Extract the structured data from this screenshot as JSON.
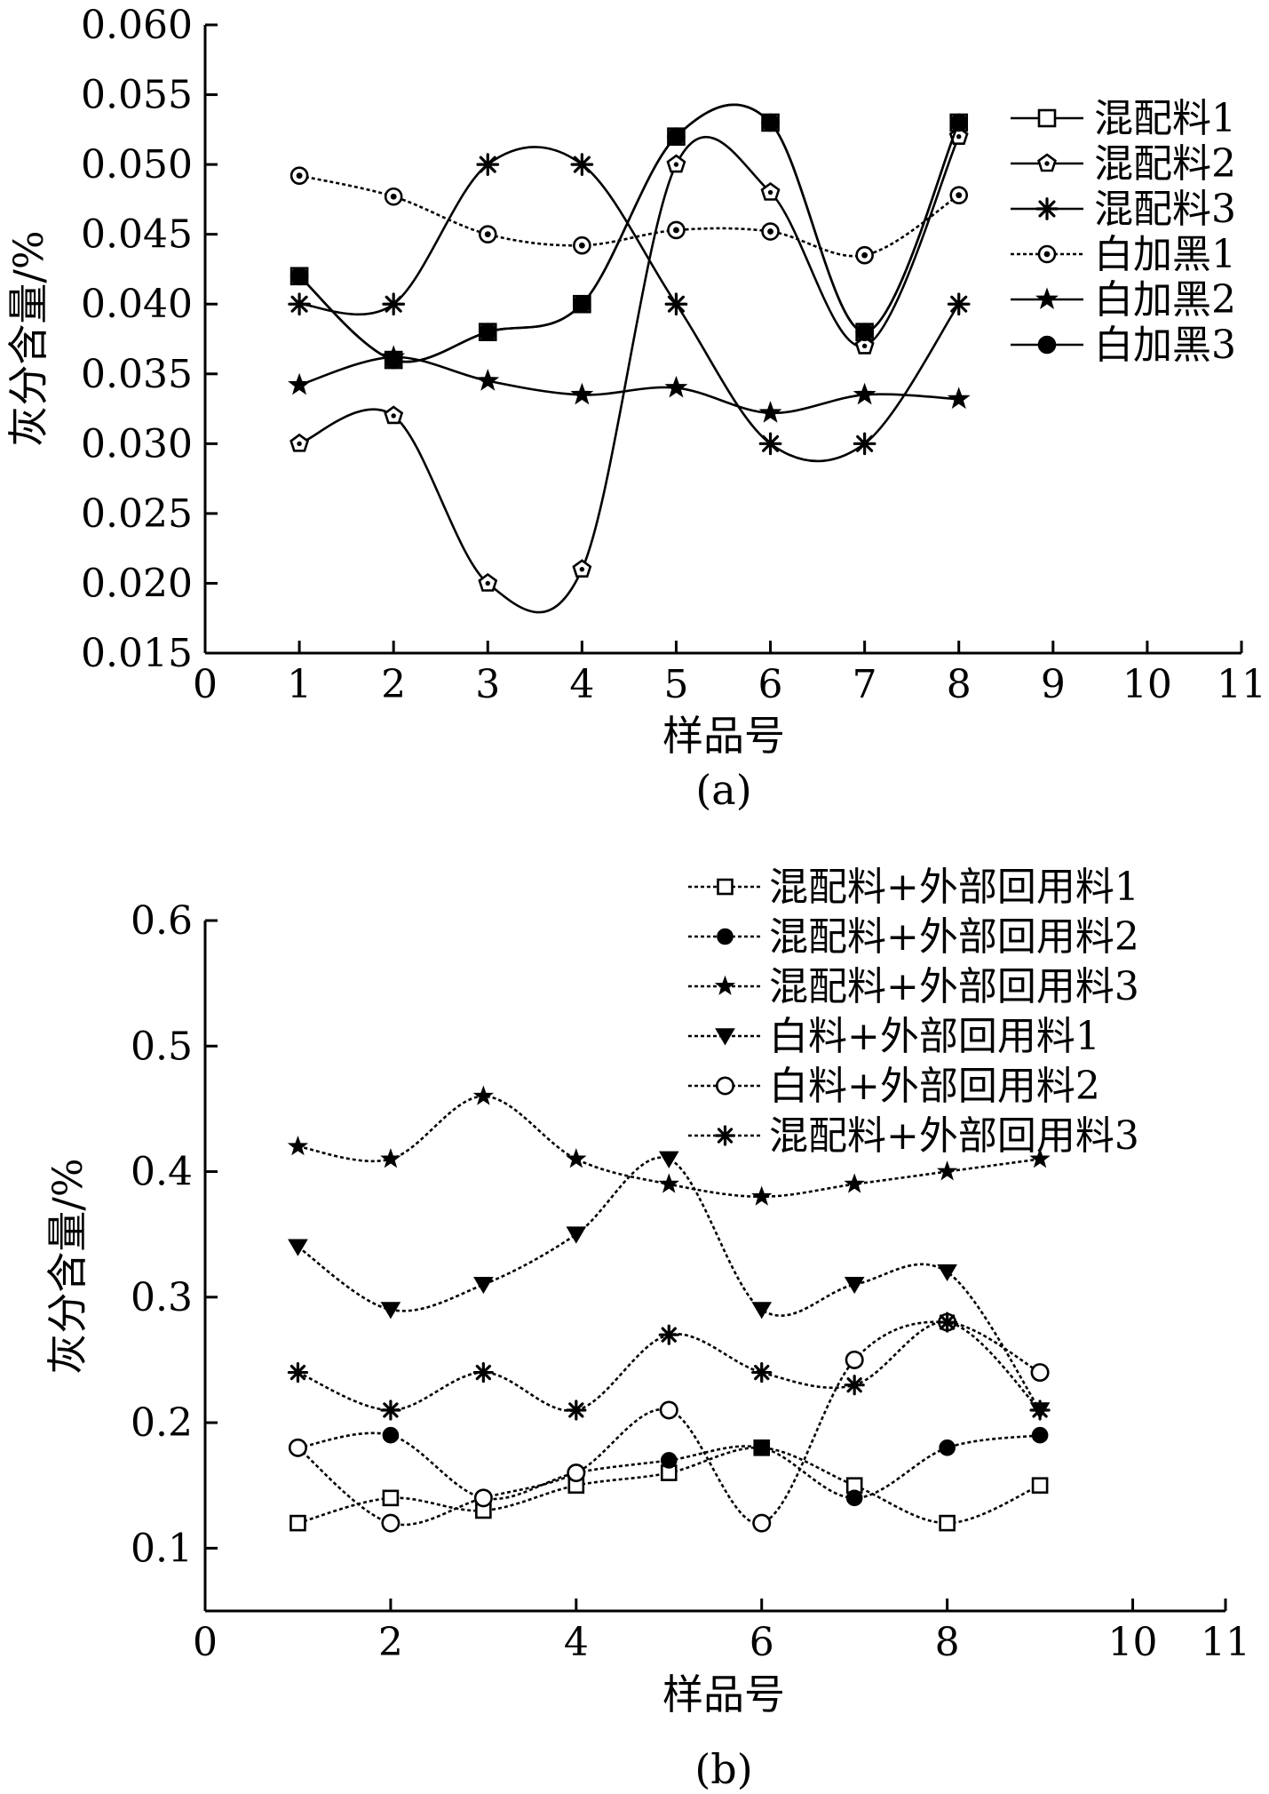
{
  "chart_data": [
    {
      "type": "line",
      "caption": "(a)",
      "xlabel": "样品号",
      "ylabel": "灰分含量/%",
      "xlim": [
        0,
        11
      ],
      "ylim": [
        0.015,
        0.06
      ],
      "xticks": [
        "0",
        "1",
        "2",
        "3",
        "4",
        "5",
        "6",
        "7",
        "8",
        "9",
        "10",
        "11"
      ],
      "yticks": [
        "0.015",
        "0.020",
        "0.025",
        "0.030",
        "0.035",
        "0.040",
        "0.045",
        "0.050",
        "0.055",
        "0.060"
      ],
      "grid": false,
      "legend_position": "top-right",
      "series": [
        {
          "name": "混配料1",
          "marker": "square-open",
          "dash": "solid",
          "x": [
            1,
            2,
            3,
            4,
            5,
            6,
            7,
            8
          ],
          "values": [
            0.042,
            0.036,
            0.038,
            0.04,
            0.052,
            0.053,
            0.038,
            0.053
          ]
        },
        {
          "name": "混配料2",
          "marker": "pentagon-open",
          "dash": "solid",
          "x": [
            1,
            2,
            3,
            4,
            5,
            6,
            7,
            8
          ],
          "values": [
            0.03,
            0.032,
            0.02,
            0.021,
            0.05,
            0.048,
            0.037,
            0.052
          ]
        },
        {
          "name": "混配料3",
          "marker": "asterisk",
          "dash": "solid",
          "x": [
            1,
            2,
            3,
            4,
            5,
            6,
            7,
            8
          ],
          "values": [
            0.04,
            0.04,
            0.05,
            0.05,
            0.04,
            0.03,
            0.03,
            0.04
          ]
        },
        {
          "name": "白加黑1",
          "marker": "circle-dot",
          "dash": "dotted",
          "x": [
            1,
            2,
            3,
            4,
            5,
            6,
            7,
            8
          ],
          "values": [
            0.0492,
            0.0477,
            0.045,
            0.0442,
            0.0453,
            0.0452,
            0.0435,
            0.0478
          ]
        },
        {
          "name": "白加黑2",
          "marker": "star",
          "dash": "solid",
          "x": [
            1,
            2,
            3,
            4,
            5,
            6,
            7,
            8
          ],
          "values": [
            0.0342,
            0.0362,
            0.0345,
            0.0335,
            0.034,
            0.0322,
            0.0335,
            0.0332
          ]
        },
        {
          "name": "白加黑3",
          "marker": "circle-filled",
          "dash": "solid",
          "x": [
            1,
            2,
            3,
            4,
            5,
            6,
            7,
            8
          ],
          "values": [
            0.042,
            0.036,
            0.038,
            0.04,
            0.052,
            0.053,
            0.038,
            0.053
          ]
        }
      ]
    },
    {
      "type": "line",
      "caption": "(b)",
      "xlabel": "样品号",
      "ylabel": "灰分含量/%",
      "xlim": [
        0,
        11
      ],
      "ylim": [
        0.05,
        0.6
      ],
      "xticks": [
        "0",
        "2",
        "4",
        "6",
        "8",
        "10",
        "11"
      ],
      "yticks": [
        "0.1",
        "0.2",
        "0.3",
        "0.4",
        "0.5",
        "0.6"
      ],
      "grid": false,
      "legend_position": "top-right",
      "series": [
        {
          "name": "混配料+外部回用料1",
          "marker": "square-open",
          "dash": "dotted",
          "x": [
            1,
            2,
            3,
            4,
            5,
            6,
            7,
            8,
            9
          ],
          "values": [
            0.12,
            0.14,
            0.13,
            0.15,
            0.16,
            0.18,
            0.15,
            0.12,
            0.15
          ]
        },
        {
          "name": "混配料+外部回用料2",
          "marker": "circle-filled",
          "dash": "dotted",
          "x": [
            1,
            2,
            3,
            4,
            5,
            6,
            7,
            8,
            9
          ],
          "values": [
            0.18,
            0.19,
            0.14,
            0.16,
            0.17,
            0.18,
            0.14,
            0.18,
            0.19
          ]
        },
        {
          "name": "混配料+外部回用料3",
          "marker": "star",
          "dash": "dotted",
          "x": [
            1,
            2,
            3,
            4,
            5,
            6,
            7,
            8,
            9
          ],
          "values": [
            0.42,
            0.41,
            0.46,
            0.41,
            0.39,
            0.38,
            0.39,
            0.4,
            0.41
          ]
        },
        {
          "name": "白料+外部回用料1",
          "marker": "triangle-down",
          "dash": "dotted",
          "x": [
            1,
            2,
            3,
            4,
            5,
            6,
            7,
            8,
            9
          ],
          "values": [
            0.34,
            0.29,
            0.31,
            0.35,
            0.41,
            0.29,
            0.31,
            0.32,
            0.21
          ]
        },
        {
          "name": "白料+外部回用料2",
          "marker": "circle-open",
          "dash": "dotted",
          "x": [
            1,
            2,
            3,
            4,
            5,
            6,
            7,
            8,
            9
          ],
          "values": [
            0.18,
            0.12,
            0.14,
            0.16,
            0.21,
            0.12,
            0.25,
            0.28,
            0.24
          ]
        },
        {
          "name": "混配料+外部回用料3",
          "marker": "asterisk",
          "dash": "dotted",
          "x": [
            1,
            2,
            3,
            4,
            5,
            6,
            7,
            8,
            9
          ],
          "values": [
            0.24,
            0.21,
            0.24,
            0.21,
            0.27,
            0.24,
            0.23,
            0.28,
            0.21
          ]
        }
      ]
    }
  ]
}
